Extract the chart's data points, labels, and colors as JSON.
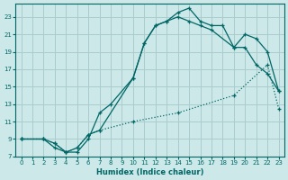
{
  "xlabel": "Humidex (Indice chaleur)",
  "bg_color": "#cce8e8",
  "grid_color": "#aacccc",
  "line_color": "#006666",
  "xlim": [
    -0.5,
    23.5
  ],
  "ylim": [
    7,
    24.5
  ],
  "xticks": [
    0,
    1,
    2,
    3,
    4,
    5,
    6,
    7,
    8,
    9,
    10,
    11,
    12,
    13,
    14,
    15,
    16,
    17,
    18,
    19,
    20,
    21,
    22,
    23
  ],
  "yticks": [
    7,
    9,
    11,
    13,
    15,
    17,
    19,
    21,
    23
  ],
  "curve1_x": [
    0,
    2,
    3,
    4,
    5,
    6,
    7,
    8,
    10,
    11,
    12,
    13,
    14,
    15,
    16,
    17,
    18,
    19,
    20,
    21,
    22,
    23
  ],
  "curve1_y": [
    9,
    9,
    8,
    7.5,
    7.5,
    9,
    12,
    13,
    16,
    20,
    22,
    22.5,
    23.5,
    24,
    22.5,
    22,
    22,
    19.5,
    21,
    20.5,
    19,
    14.5
  ],
  "curve2_x": [
    0,
    2,
    3,
    4,
    5,
    6,
    7,
    10,
    11,
    12,
    13,
    14,
    15,
    16,
    17,
    19,
    20,
    21,
    22,
    23
  ],
  "curve2_y": [
    9,
    9,
    8.5,
    7.5,
    8,
    9.5,
    10,
    16,
    20,
    22,
    22.5,
    23,
    22.5,
    22,
    21.5,
    19.5,
    19.5,
    17.5,
    16.5,
    14.5
  ],
  "curve3_x": [
    0,
    2,
    3,
    4,
    5,
    6,
    7,
    10,
    14,
    19,
    22,
    23
  ],
  "curve3_y": [
    9,
    9,
    8.5,
    7.5,
    8,
    9.5,
    10,
    11,
    12,
    14,
    17.5,
    12.5
  ]
}
